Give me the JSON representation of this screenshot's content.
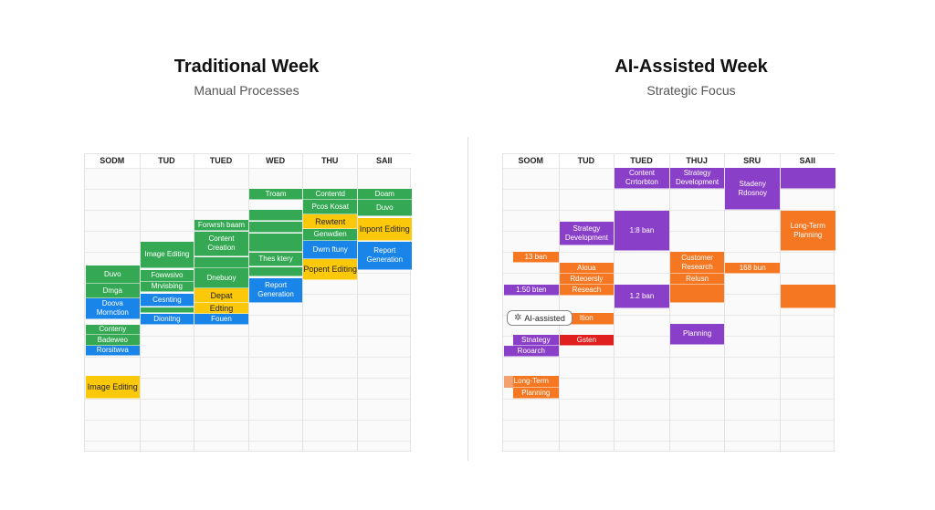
{
  "colors": {
    "green": "#34a853",
    "yellow": "#fbc80a",
    "blue": "#1a85e8",
    "purple": "#8a3fc9",
    "orange": "#f57722",
    "red": "#e0201f",
    "light_orange": "#f5a070"
  },
  "left": {
    "title": "Traditional Week",
    "subtitle": "Manual Processes",
    "days": [
      "SODM",
      "TUD",
      "TUED",
      "WED",
      "THU",
      "SAII"
    ],
    "blocks": [
      {
        "day": 3,
        "text": "Troam",
        "color": "green"
      },
      {
        "day": 3,
        "text": "",
        "color": "green"
      },
      {
        "day": 3,
        "text": "",
        "color": "green"
      },
      {
        "day": 3,
        "text": "",
        "color": "green"
      },
      {
        "day": 3,
        "text": "Thes ktery",
        "color": "green"
      },
      {
        "day": 3,
        "text": "",
        "color": "green"
      },
      {
        "day": 3,
        "text": "Report Generation",
        "color": "blue"
      },
      {
        "day": 4,
        "text": "Contentd",
        "color": "green"
      },
      {
        "day": 4,
        "text": "Pcos Kosat",
        "color": "green"
      },
      {
        "day": 4,
        "text": "Rewtent",
        "color": "yellow"
      },
      {
        "day": 4,
        "text": "Genwdien",
        "color": "green"
      },
      {
        "day": 4,
        "text": "Dwrn ftuny",
        "color": "blue"
      },
      {
        "day": 4,
        "text": "Popent Editing",
        "color": "yellow"
      },
      {
        "day": 5,
        "text": "Doam",
        "color": "green"
      },
      {
        "day": 5,
        "text": "Duvo",
        "color": "green"
      },
      {
        "day": 5,
        "text": "Inpont Editing",
        "color": "yellow"
      },
      {
        "day": 5,
        "text": "Report Generation",
        "color": "blue"
      },
      {
        "day": 2,
        "text": "Forwrsh baam",
        "color": "green"
      },
      {
        "day": 2,
        "text": "Content Creation",
        "color": "green"
      },
      {
        "day": 2,
        "text": "",
        "color": "green"
      },
      {
        "day": 2,
        "text": "Dnebuoy",
        "color": "green"
      },
      {
        "day": 2,
        "text": "Depat",
        "color": "yellow"
      },
      {
        "day": 2,
        "text": "Edting",
        "color": "yellow"
      },
      {
        "day": 2,
        "text": "Fouen",
        "color": "blue"
      },
      {
        "day": 1,
        "text": "Image Editing",
        "color": "green"
      },
      {
        "day": 1,
        "text": "Fowwsivo",
        "color": "green"
      },
      {
        "day": 1,
        "text": "Mrvisbing",
        "color": "green"
      },
      {
        "day": 1,
        "text": "Cesnting",
        "color": "blue"
      },
      {
        "day": 1,
        "text": "",
        "color": "green"
      },
      {
        "day": 1,
        "text": "Dionitng",
        "color": "blue"
      },
      {
        "day": 0,
        "text": "Duvo",
        "color": "green"
      },
      {
        "day": 0,
        "text": "Dmga",
        "color": "green"
      },
      {
        "day": 0,
        "text": "Doova Mornction",
        "color": "blue"
      },
      {
        "day": 0,
        "text": "Conteny",
        "color": "green"
      },
      {
        "day": 0,
        "text": "Badeweo",
        "color": "green"
      },
      {
        "day": 0,
        "text": "Rorsitwva",
        "color": "blue"
      },
      {
        "day": 0,
        "text": "Image Editing",
        "color": "yellow"
      }
    ]
  },
  "right": {
    "title": "AI-Assisted Week",
    "subtitle": "Strategic Focus",
    "days": [
      "SOOM",
      "TUD",
      "TUED",
      "THUJ",
      "SRU",
      "SAII"
    ],
    "badge": {
      "label": "AI-assisted",
      "icon": "sparkle-network-icon"
    },
    "blocks": [
      {
        "day": 2,
        "text": "Content Crrtorbton",
        "color": "purple"
      },
      {
        "day": 3,
        "text": "Strategy Development",
        "color": "purple"
      },
      {
        "day": 4,
        "text": "Stadeny Rdosnoy",
        "color": "purple"
      },
      {
        "day": 5,
        "text": "",
        "color": "purple"
      },
      {
        "day": 2,
        "text": "1:8 ban",
        "color": "purple"
      },
      {
        "day": 1,
        "text": "Strategy Development",
        "color": "purple"
      },
      {
        "day": 5,
        "text": "Long-Term Planning",
        "color": "orange"
      },
      {
        "day": 0,
        "text": "13 ban",
        "color": "orange"
      },
      {
        "day": 1,
        "text": "Aloua",
        "color": "orange"
      },
      {
        "day": 1,
        "text": "Rdeoersly",
        "color": "orange"
      },
      {
        "day": 1,
        "text": "Reseach",
        "color": "orange"
      },
      {
        "day": 3,
        "text": "Customer Research",
        "color": "orange"
      },
      {
        "day": 3,
        "text": "Relusn",
        "color": "orange"
      },
      {
        "day": 3,
        "text": "",
        "color": "orange"
      },
      {
        "day": 4,
        "text": "168 bun",
        "color": "orange"
      },
      {
        "day": 0,
        "text": "1:50 bten",
        "color": "purple"
      },
      {
        "day": 2,
        "text": "1.2 ban",
        "color": "purple"
      },
      {
        "day": 5,
        "text": "",
        "color": "orange"
      },
      {
        "day": 1,
        "text": "ltion",
        "color": "orange"
      },
      {
        "day": 3,
        "text": "Planning",
        "color": "purple"
      },
      {
        "day": 0,
        "text": "Stnategy",
        "color": "purple"
      },
      {
        "day": 0,
        "text": "Rooarch",
        "color": "purple"
      },
      {
        "day": 1,
        "text": "Gsten",
        "color": "red"
      },
      {
        "day": 0,
        "text": "Long-Term",
        "color": "orange"
      },
      {
        "day": 0,
        "text": "Planning",
        "color": "orange"
      }
    ]
  }
}
